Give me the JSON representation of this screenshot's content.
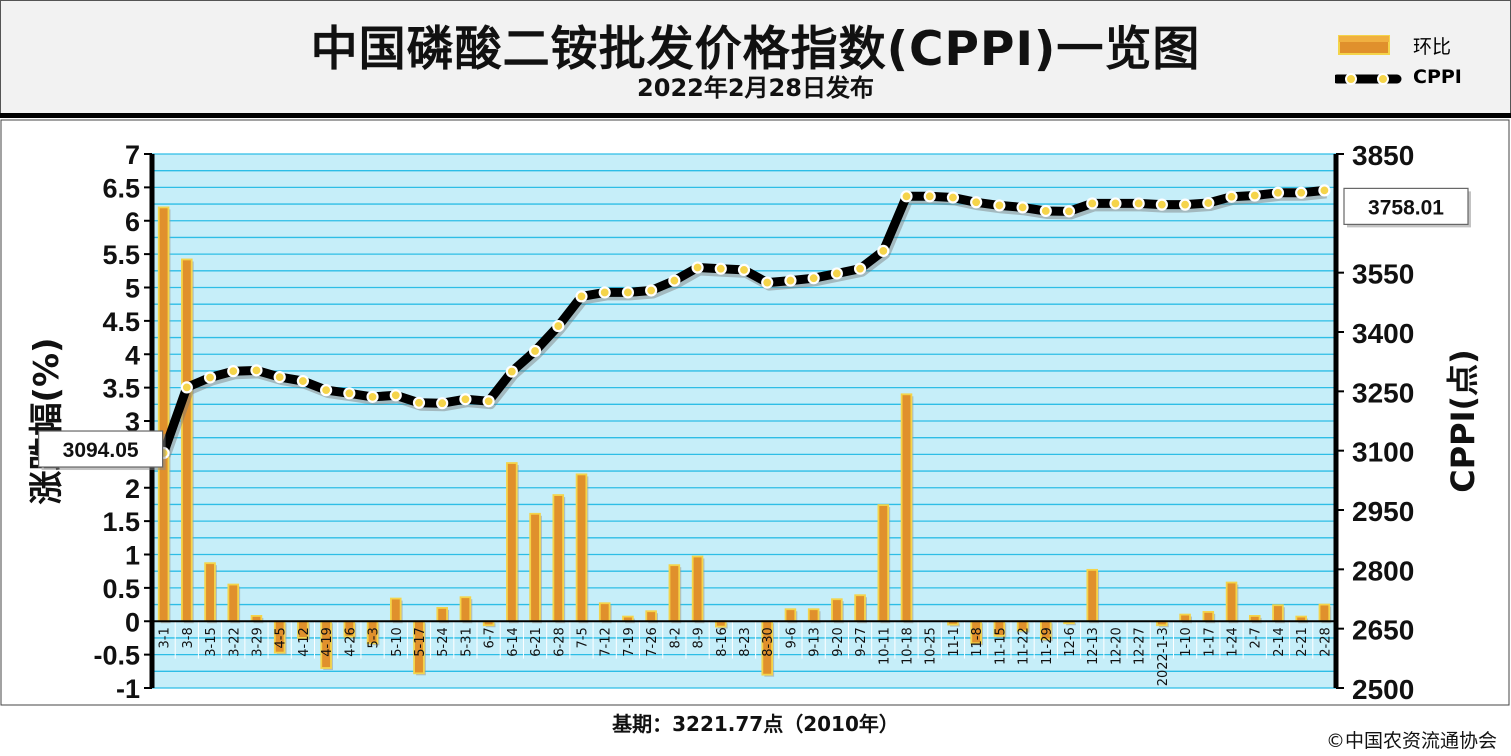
{
  "header": {
    "title": "中国磷酸二铵批发价格指数(CPPI)一览图",
    "subtitle": "2022年2月28日发布"
  },
  "legend": {
    "bar_label": "环比",
    "line_label": "CPPI"
  },
  "footer": {
    "base_period": "基期：3221.77点（2010年）",
    "copyright": "©中国农资流通协会"
  },
  "colors": {
    "plot_bg": "#c6eef9",
    "grid": "#2dbde6",
    "bar_face": "#e0902c",
    "bar_edge": "#f4d44a",
    "line": "#000000",
    "marker": "#f5d44a"
  },
  "chart_data": {
    "type": "bar+line",
    "categories": [
      "3-1",
      "3-8",
      "3-15",
      "3-22",
      "3-29",
      "4-5",
      "4-12",
      "4-19",
      "4-26",
      "5-3",
      "5-10",
      "5-17",
      "5-24",
      "5-31",
      "6-7",
      "6-14",
      "6-21",
      "6-28",
      "7-5",
      "7-12",
      "7-19",
      "7-26",
      "8-2",
      "8-9",
      "8-16",
      "8-23",
      "8-30",
      "9-6",
      "9-13",
      "9-20",
      "9-27",
      "10-11",
      "10-18",
      "10-25",
      "11-1",
      "11-8",
      "11-15",
      "11-22",
      "11-29",
      "12-6",
      "12-13",
      "12-20",
      "12-27",
      "2022-1-3",
      "1-10",
      "1-17",
      "1-24",
      "2-7",
      "2-14",
      "2-21",
      "2-28"
    ],
    "series": [
      {
        "name": "环比",
        "axis": "left",
        "type": "bar",
        "values": [
          6.2,
          5.42,
          0.87,
          0.55,
          0.08,
          -0.47,
          -0.25,
          -0.7,
          -0.23,
          -0.33,
          0.34,
          -0.78,
          0.2,
          0.36,
          -0.06,
          2.37,
          1.61,
          1.89,
          2.2,
          0.27,
          0.07,
          0.15,
          0.84,
          0.97,
          -0.08,
          0.0,
          -0.8,
          0.18,
          0.18,
          0.33,
          0.39,
          1.74,
          3.4,
          0.0,
          -0.05,
          -0.33,
          -0.22,
          -0.14,
          -0.27,
          -0.03,
          0.77,
          0.0,
          0.0,
          -0.06,
          0.1,
          0.14,
          0.58,
          0.08,
          0.24,
          0.07,
          0.25
        ]
      },
      {
        "name": "CPPI",
        "axis": "right",
        "type": "line",
        "values": [
          3094.05,
          3260,
          3285,
          3301,
          3303,
          3286,
          3276,
          3253,
          3245,
          3236,
          3240,
          3221,
          3220,
          3230,
          3225,
          3300,
          3352,
          3415,
          3490,
          3500,
          3500,
          3505,
          3530,
          3563,
          3560,
          3557,
          3525,
          3530,
          3536,
          3548,
          3560,
          3605,
          3743,
          3743,
          3740,
          3728,
          3720,
          3715,
          3706,
          3705,
          3725,
          3725,
          3725,
          3722,
          3722,
          3726,
          3742,
          3745,
          3752,
          3752,
          3758.01
        ]
      }
    ],
    "y_left": {
      "label": "涨跌幅(%)",
      "min": -1,
      "max": 7,
      "ticks": [
        "7",
        "6.5",
        "6",
        "5.5",
        "5",
        "4.5",
        "4",
        "3.5",
        "3",
        "2.5",
        "2",
        "1.5",
        "1",
        "0.5",
        "0",
        "-0.5",
        "-1"
      ]
    },
    "y_right": {
      "label": "CPPI(点)",
      "min": 2500,
      "max": 3850,
      "ticks": [
        "3850",
        "3550",
        "3400",
        "3250",
        "3100",
        "2950",
        "2800",
        "2650",
        "2500"
      ]
    },
    "callouts": {
      "first": "3094.05",
      "last": "3758.01"
    },
    "grid": true,
    "legend_position": "top-right"
  }
}
